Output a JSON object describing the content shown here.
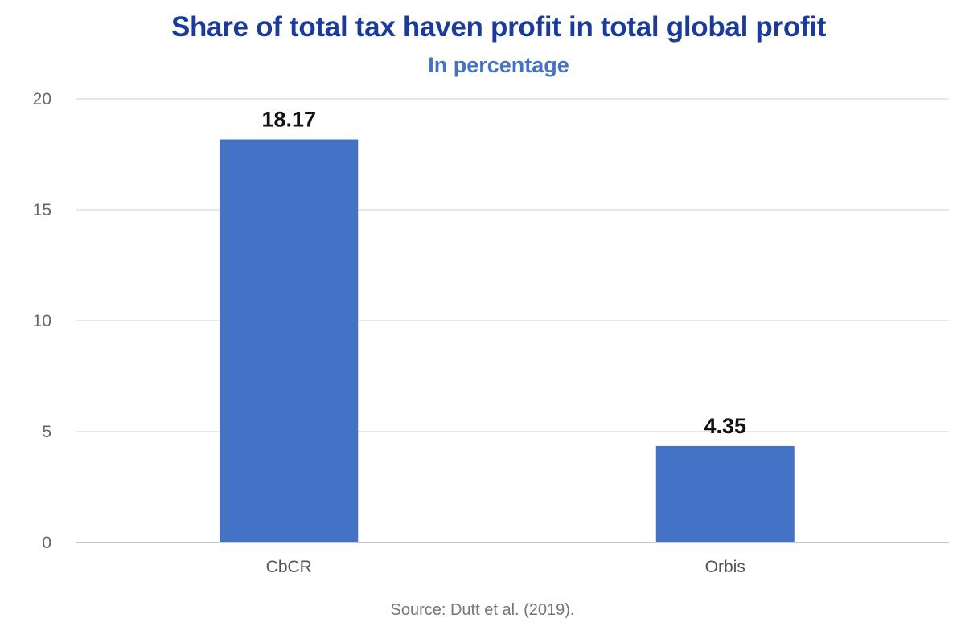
{
  "chart_data": {
    "type": "bar",
    "title": "Share of total tax haven profit in total global profit",
    "subtitle": "In percentage",
    "xlabel": "",
    "ylabel": "",
    "categories": [
      "CbCR",
      "Orbis"
    ],
    "values": [
      18.17,
      4.35
    ],
    "data_labels": [
      "18.17",
      "4.35"
    ],
    "ylim": [
      0,
      20
    ],
    "yticks": [
      0,
      5,
      10,
      15,
      20
    ],
    "ytick_labels": [
      "0",
      "5",
      "10",
      "15",
      "20"
    ],
    "grid": true,
    "legend": "none",
    "bar_color": "#4472c4"
  },
  "footer": {
    "source": "Source: Dutt et al. (2019)."
  },
  "colors": {
    "title": "#1a3a9c",
    "subtitle": "#4472c4",
    "gridline": "#dde1e6",
    "baseline": "#c8ccd2"
  }
}
